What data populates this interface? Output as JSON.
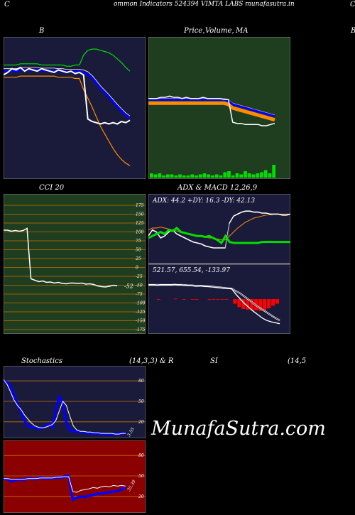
{
  "header": {
    "left_letter": "C",
    "title": "ommon  Indicators 524394  VIMTA LABS munafasutra.in",
    "right_letter": "C"
  },
  "panels": {
    "bollinger": {
      "title": "B"
    },
    "price": {
      "title_a": "Price,",
      "title_b": "Volume,",
      "title_c": "MA",
      "right_letter": "B"
    },
    "cci": {
      "title": "CCI 20",
      "ticks": [
        "175",
        "150",
        "125",
        "100",
        "75",
        "50",
        "25",
        "0",
        "-25",
        "-50",
        "-75",
        "-100",
        "-125",
        "-150",
        "-175"
      ],
      "current": "-52"
    },
    "adx": {
      "title": "ADX  & MACD 12,26,9",
      "adx_readout": "ADX: 44.2  +DY: 16.3 -DY: 42.13",
      "macd_readout": "521.57,  655.54,  -133.97"
    },
    "stochastics": {
      "title_a": "Stochastics",
      "title_b": "(14,3,3) & R",
      "ticks": [
        "80",
        "50",
        "20"
      ],
      "current": "3.55"
    },
    "rsi": {
      "title_a": "SI",
      "title_b": "(14,5",
      "ticks": [
        "80",
        "50",
        "20"
      ],
      "current": "35.39"
    }
  },
  "brand": "MunafaSutra.com",
  "colors": {
    "navy_panel": "#1a1a3a",
    "green_panel": "#1f3d1f",
    "red_panel": "#8b0000",
    "grid_orange": "#c87000",
    "line_blue": "#0000ff",
    "line_green": "#00e000",
    "line_orange": "#ff8c00",
    "line_white": "#ffffff"
  },
  "chart_data": [
    {
      "type": "line",
      "name": "bollinger",
      "x": [
        0,
        1,
        2,
        3,
        4,
        5,
        6,
        7,
        8,
        9,
        10,
        11,
        12,
        13,
        14,
        15,
        16,
        17,
        18,
        19,
        20,
        21,
        22,
        23,
        24,
        25,
        26,
        27,
        28,
        29,
        30
      ],
      "series": [
        {
          "values": [
            52,
            54,
            57,
            56,
            58,
            55,
            57,
            56,
            55,
            57,
            56,
            55,
            54,
            56,
            55,
            54,
            55,
            53,
            54,
            52,
            16,
            14,
            13,
            12,
            13,
            12,
            13,
            12,
            14,
            13,
            15
          ]
        },
        {
          "values": [
            60,
            60,
            60,
            60,
            61,
            61,
            61,
            61,
            61,
            60,
            60,
            60,
            60,
            60,
            60,
            59,
            59,
            60,
            60,
            68,
            72,
            73,
            73,
            72,
            71,
            70,
            68,
            65,
            62,
            58,
            55
          ]
        },
        {
          "values": [
            50,
            50,
            50,
            50,
            51,
            51,
            51,
            51,
            51,
            51,
            51,
            51,
            51,
            50,
            50,
            50,
            50,
            49,
            49,
            40,
            33,
            26,
            18,
            10,
            4,
            -2,
            -8,
            -13,
            -17,
            -20,
            -22
          ]
        }
      ]
    },
    {
      "type": "line",
      "name": "price-volume-ma",
      "x": [
        0,
        1,
        2,
        3,
        4,
        5,
        6,
        7,
        8,
        9,
        10,
        11,
        12,
        13,
        14,
        15,
        16,
        17,
        18,
        19,
        20,
        21,
        22,
        23,
        24,
        25,
        26,
        27,
        28,
        29,
        30
      ],
      "series": [
        {
          "values": [
            58,
            58,
            58,
            59,
            59,
            60,
            59,
            59,
            58,
            59,
            58,
            58,
            58,
            59,
            58,
            58,
            58,
            58,
            57,
            57,
            38,
            37,
            37,
            36,
            36,
            36,
            36,
            35,
            35,
            36,
            37
          ]
        },
        {
          "values": [
            57,
            57,
            57,
            57,
            57,
            57,
            57,
            57,
            57,
            57,
            57,
            57,
            57,
            57,
            57,
            57,
            57,
            57,
            57,
            56,
            53,
            52,
            51,
            50,
            49,
            48,
            47,
            46,
            45,
            44,
            43
          ]
        }
      ],
      "volume": [
        4,
        3,
        4,
        2,
        3,
        3,
        2,
        3,
        2,
        2,
        3,
        2,
        3,
        4,
        3,
        2,
        3,
        2,
        5,
        6,
        2,
        4,
        3,
        6,
        4,
        3,
        4,
        5,
        7,
        4,
        12
      ]
    },
    {
      "type": "line",
      "name": "cci",
      "ylim": [
        -175,
        175
      ],
      "x": [
        0,
        1,
        2,
        3,
        4,
        5,
        6,
        7,
        8,
        9,
        10,
        11,
        12,
        13,
        14,
        15,
        16,
        17,
        18,
        19,
        20,
        21,
        22,
        23,
        24,
        25,
        26,
        27,
        28,
        29
      ],
      "values": [
        105,
        105,
        102,
        104,
        102,
        104,
        110,
        -32,
        -36,
        -40,
        -38,
        -42,
        -41,
        -44,
        -42,
        -45,
        -46,
        -44,
        -44,
        -45,
        -44,
        -47,
        -46,
        -48,
        -52,
        -54,
        -55,
        -53,
        -50,
        -52
      ]
    },
    {
      "type": "line",
      "name": "adx",
      "x": [
        0,
        1,
        2,
        3,
        4,
        5,
        6,
        7,
        8,
        9,
        10,
        11,
        12,
        13,
        14,
        15,
        16,
        17,
        18,
        19,
        20,
        21,
        22,
        23,
        24,
        25,
        26,
        27,
        28,
        29,
        30,
        31,
        32,
        33,
        34,
        35
      ],
      "series": [
        {
          "values": [
            20,
            22,
            24,
            26,
            24,
            28,
            27,
            30,
            26,
            25,
            24,
            23,
            22,
            22,
            21,
            22,
            20,
            18,
            15,
            22,
            16,
            15,
            15,
            15,
            15,
            15,
            15,
            15,
            16,
            16,
            16,
            16,
            16,
            16,
            16,
            16
          ]
        },
        {
          "values": [
            22,
            28,
            26,
            20,
            22,
            26,
            28,
            24,
            22,
            20,
            18,
            16,
            15,
            14,
            12,
            11,
            10,
            10,
            10,
            10,
            35,
            42,
            44,
            46,
            47,
            47,
            46,
            46,
            45,
            45,
            44,
            44,
            44,
            43,
            43,
            44
          ]
        },
        {
          "values": [
            28,
            30,
            30,
            31,
            30,
            29,
            28,
            27,
            26,
            25,
            24,
            23,
            22,
            22,
            21,
            20,
            20,
            19,
            18,
            18,
            22,
            26,
            30,
            33,
            36,
            38,
            40,
            41,
            42,
            43,
            43,
            44,
            44,
            44,
            44,
            44
          ]
        }
      ]
    },
    {
      "type": "line",
      "name": "macd",
      "x": [
        0,
        1,
        2,
        3,
        4,
        5,
        6,
        7,
        8,
        9,
        10,
        11,
        12,
        13,
        14,
        15,
        16,
        17,
        18,
        19,
        20,
        21,
        22,
        23,
        24,
        25,
        26,
        27,
        28,
        29,
        30
      ],
      "series": [
        {
          "values": [
            30,
            30,
            29,
            30,
            30,
            30,
            31,
            30,
            29,
            29,
            28,
            27,
            28,
            27,
            26,
            25,
            24,
            23,
            22,
            22,
            10,
            0,
            -10,
            -18,
            -26,
            -33,
            -40,
            -45,
            -48,
            -50,
            -52
          ]
        },
        {
          "values": [
            30,
            30,
            30,
            30,
            30,
            30,
            30,
            30,
            30,
            29,
            29,
            28,
            28,
            27,
            27,
            26,
            25,
            24,
            23,
            22,
            17,
            12,
            5,
            -2,
            -9,
            -16,
            -22,
            -28,
            -34,
            -40,
            -45
          ]
        }
      ],
      "histogram": [
        0,
        0,
        -1,
        0,
        0,
        0,
        1,
        0,
        -1,
        0,
        -1,
        -1,
        0,
        0,
        -1,
        -1,
        -1,
        -1,
        -1,
        0,
        -7,
        -12,
        -15,
        -16,
        -17,
        -17,
        -18,
        -17,
        -14,
        -10,
        -7
      ]
    },
    {
      "type": "line",
      "name": "stochastics",
      "ylim": [
        0,
        100
      ],
      "x": [
        0,
        1,
        2,
        3,
        4,
        5,
        6,
        7,
        8,
        9,
        10,
        11,
        12,
        13,
        14,
        15,
        16,
        17,
        18,
        19,
        20,
        21,
        22,
        23,
        24,
        25,
        26,
        27,
        28,
        29,
        30,
        31,
        32,
        33,
        34,
        35
      ],
      "series": [
        {
          "values": [
            80,
            78,
            72,
            58,
            45,
            36,
            22,
            14,
            12,
            12,
            10,
            11,
            13,
            17,
            12,
            38,
            56,
            48,
            18,
            8,
            6,
            6,
            5,
            5,
            4,
            3,
            3,
            3,
            3,
            2,
            2,
            2,
            2,
            3,
            3,
            4
          ]
        },
        {
          "values": [
            82,
            75,
            64,
            52,
            44,
            38,
            30,
            24,
            18,
            14,
            12,
            11,
            12,
            14,
            16,
            22,
            36,
            50,
            44,
            28,
            14,
            8,
            6,
            6,
            5,
            5,
            4,
            4,
            3,
            3,
            3,
            3,
            2,
            2,
            3,
            3
          ]
        }
      ]
    },
    {
      "type": "line",
      "name": "rsi",
      "ylim": [
        0,
        100
      ],
      "x": [
        0,
        1,
        2,
        3,
        4,
        5,
        6,
        7,
        8,
        9,
        10,
        11,
        12,
        13,
        14,
        15,
        16,
        17,
        18,
        19,
        20,
        21,
        22,
        23,
        24,
        25,
        26,
        27,
        28,
        29,
        30
      ],
      "series": [
        {
          "values": [
            46,
            45,
            42,
            44,
            45,
            44,
            47,
            46,
            45,
            48,
            47,
            46,
            47,
            48,
            47,
            49,
            50,
            15,
            18,
            20,
            19,
            21,
            22,
            24,
            24,
            25,
            26,
            27,
            28,
            30,
            33
          ]
        },
        {
          "values": [
            46,
            46,
            45,
            45,
            45,
            45,
            46,
            46,
            46,
            47,
            47,
            47,
            47,
            48,
            48,
            49,
            49,
            27,
            26,
            29,
            30,
            31,
            33,
            32,
            34,
            35,
            34,
            36,
            35,
            36,
            35
          ]
        }
      ]
    }
  ]
}
